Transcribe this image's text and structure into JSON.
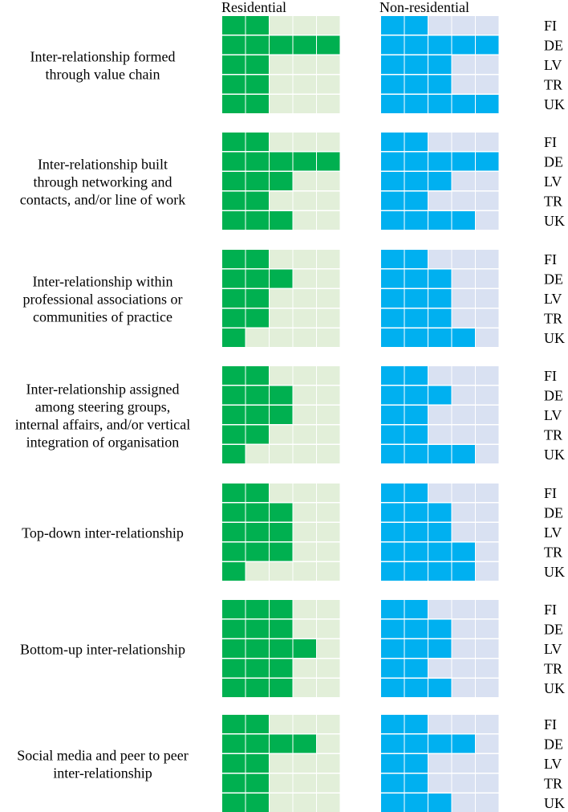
{
  "chart_data": {
    "type": "heatmap",
    "title": "",
    "scale_max": 5,
    "headers": {
      "residential": "Residential",
      "non_residential": "Non-residential"
    },
    "countries": [
      "FI",
      "DE",
      "LV",
      "TR",
      "UK"
    ],
    "colors": {
      "residential_filled": "#00b050",
      "residential_empty": "#e2efd9",
      "non_residential_filled": "#00b0f0",
      "non_residential_empty": "#d9e1f2"
    },
    "groups": [
      {
        "label_lines": [
          "Inter-relationship formed",
          "through value chain"
        ],
        "residential": [
          2,
          5,
          2,
          2,
          2
        ],
        "non_residential": [
          2,
          5,
          3,
          3,
          5
        ]
      },
      {
        "label_lines": [
          "Inter-relationship built",
          "through networking and",
          "contacts, and/or line of work"
        ],
        "residential": [
          2,
          5,
          3,
          2,
          3
        ],
        "non_residential": [
          2,
          5,
          3,
          2,
          4
        ]
      },
      {
        "label_lines": [
          "Inter-relationship within",
          "professional associations or",
          "communities of practice"
        ],
        "residential": [
          2,
          3,
          2,
          2,
          1
        ],
        "non_residential": [
          2,
          3,
          3,
          3,
          4
        ]
      },
      {
        "label_lines": [
          "Inter-relationship assigned",
          "among steering groups,",
          "internal affairs, and/or vertical",
          "integration of organisation"
        ],
        "residential": [
          2,
          3,
          3,
          2,
          1
        ],
        "non_residential": [
          2,
          3,
          2,
          2,
          4
        ]
      },
      {
        "label_lines": [
          "Top-down inter-relationship"
        ],
        "residential": [
          2,
          3,
          3,
          3,
          1
        ],
        "non_residential": [
          2,
          3,
          3,
          4,
          4
        ]
      },
      {
        "label_lines": [
          "Bottom-up inter-relationship"
        ],
        "residential": [
          3,
          3,
          4,
          3,
          3
        ],
        "non_residential": [
          2,
          3,
          3,
          2,
          3
        ]
      },
      {
        "label_lines": [
          "Social media and peer to peer",
          "inter-relationship"
        ],
        "residential": [
          2,
          4,
          2,
          2,
          2
        ],
        "non_residential": [
          2,
          4,
          2,
          2,
          3
        ]
      }
    ]
  }
}
